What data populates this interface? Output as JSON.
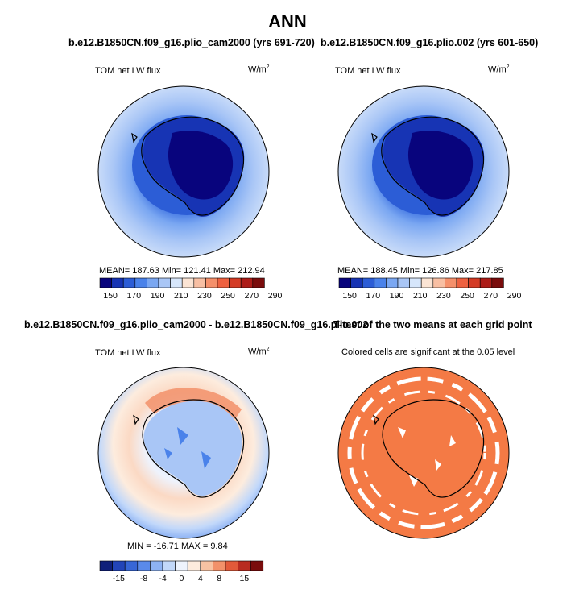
{
  "title": "ANN",
  "panels": [
    {
      "title": "b.e12.B1850CN.f09_g16.plio_cam2000 (yrs 691-720)",
      "variable": "TOM net LW flux",
      "units_base": "W/m",
      "units_exp": "2",
      "stats": "MEAN=  187.63   Min=  121.41   Max=  212.94"
    },
    {
      "title": "b.e12.B1850CN.f09_g16.plio.002 (yrs 601-650)",
      "variable": "TOM net LW flux",
      "units_base": "W/m",
      "units_exp": "2",
      "stats": "MEAN=  188.45   Min=  126.86   Max=  217.85"
    },
    {
      "title": "b.e12.B1850CN.f09_g16.plio_cam2000 - b.e12.B1850CN.f09_g16.plio.002",
      "variable": "TOM net LW flux",
      "units_base": "W/m",
      "units_exp": "2",
      "stats": "MIN =  -16.71  MAX =    9.84"
    },
    {
      "title": "T-test of the two means at each grid point",
      "subtitle": "Colored cells are significant at the 0.05 level"
    }
  ],
  "colorbar_main": {
    "colors": [
      "#08047d",
      "#1734b4",
      "#2c5dd6",
      "#4a82ea",
      "#7aa7f2",
      "#a9c6f6",
      "#d6e6fb",
      "#fbe4d4",
      "#f8bfa3",
      "#f5906b",
      "#ee6140",
      "#d43b25",
      "#ad1c18",
      "#7a0c0c"
    ],
    "tick_labels": [
      "150",
      "170",
      "190",
      "210",
      "230",
      "250",
      "270",
      "290"
    ]
  },
  "colorbar_diff": {
    "colors": [
      "#10207a",
      "#2244b8",
      "#3766d6",
      "#5a8aea",
      "#8eb3f4",
      "#c2d8fa",
      "#eef3fd",
      "#fdecde",
      "#f8c3a3",
      "#f2916a",
      "#e25a3a",
      "#b82b20",
      "#7a0c0c"
    ],
    "tick_labels": [
      "-15",
      "-8",
      "-4",
      "0",
      "4",
      "8",
      "15"
    ]
  },
  "ttest_color": "#f47a45",
  "chart_data": [
    {
      "type": "heatmap",
      "title": "b.e12.B1850CN.f09_g16.plio_cam2000 (yrs 691-720)",
      "field": "TOM net LW flux",
      "units": "W/m2",
      "mean": 187.63,
      "min": 121.41,
      "max": 212.94,
      "levels": [
        150,
        170,
        190,
        210,
        230,
        250,
        270,
        290
      ]
    },
    {
      "type": "heatmap",
      "title": "b.e12.B1850CN.f09_g16.plio.002 (yrs 601-650)",
      "field": "TOM net LW flux",
      "units": "W/m2",
      "mean": 188.45,
      "min": 126.86,
      "max": 217.85,
      "levels": [
        150,
        170,
        190,
        210,
        230,
        250,
        270,
        290
      ]
    },
    {
      "type": "heatmap",
      "title": "b.e12.B1850CN.f09_g16.plio_cam2000 - b.e12.B1850CN.f09_g16.plio.002",
      "field": "TOM net LW flux",
      "units": "W/m2",
      "min": -16.71,
      "max": 9.84,
      "levels": [
        -15,
        -8,
        -4,
        0,
        4,
        8,
        15
      ]
    },
    {
      "type": "heatmap",
      "title": "T-test of the two means at each grid point",
      "note": "Colored cells are significant at the 0.05 level"
    }
  ]
}
